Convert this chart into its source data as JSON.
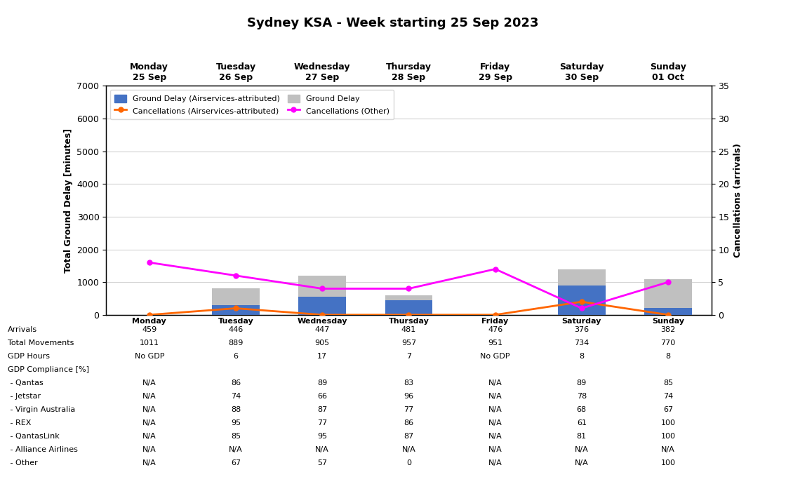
{
  "title": "Sydney KSA - Week starting 25 Sep 2023",
  "days": [
    "Monday\n25 Sep",
    "Tuesday\n26 Sep",
    "Wednesday\n27 Sep",
    "Thursday\n28 Sep",
    "Friday\n29 Sep",
    "Saturday\n30 Sep",
    "Sunday\n01 Oct"
  ],
  "days_short": [
    "Monday",
    "Tuesday",
    "Wednesday",
    "Thursday",
    "Friday",
    "Saturday",
    "Sunday"
  ],
  "ground_delay_attributed": [
    0,
    300,
    550,
    450,
    0,
    900,
    200
  ],
  "ground_delay_total": [
    0,
    800,
    1200,
    600,
    0,
    1400,
    1100
  ],
  "cancellations_attributed": [
    0,
    1,
    0,
    0,
    0,
    2,
    0
  ],
  "cancellations_other": [
    8,
    6,
    4,
    4,
    7,
    1,
    5
  ],
  "bar_color_attributed": "#4472C4",
  "bar_color_total": "#C0C0C0",
  "line_color_attributed": "#FF6600",
  "line_color_other": "#FF00FF",
  "ylabel_left": "Total Ground Delay [minutes]",
  "ylabel_right": "Cancellations (arrivals)",
  "ylim_left": [
    0,
    7000
  ],
  "ylim_right": [
    0,
    35
  ],
  "yticks_left": [
    0,
    1000,
    2000,
    3000,
    4000,
    5000,
    6000,
    7000
  ],
  "yticks_right": [
    0,
    5,
    10,
    15,
    20,
    25,
    30,
    35
  ],
  "legend_labels": [
    "Ground Delay (Airservices-attributed)",
    "Ground Delay",
    "Cancellations (Airservices-attributed)",
    "Cancellations (Other)"
  ],
  "table_rows": [
    "Arrivals",
    "Total Movements",
    "GDP Hours",
    "GDP Compliance [%]",
    " - Qantas",
    " - Jetstar",
    " - Virgin Australia",
    " - REX",
    " - QantasLink",
    " - Alliance Airlines",
    " - Other"
  ],
  "table_data": [
    [
      "459",
      "446",
      "447",
      "481",
      "476",
      "376",
      "382"
    ],
    [
      "1011",
      "889",
      "905",
      "957",
      "951",
      "734",
      "770"
    ],
    [
      "No GDP",
      "6",
      "17",
      "7",
      "No GDP",
      "8",
      "8"
    ],
    [
      "",
      "",
      "",
      "",
      "",
      "",
      ""
    ],
    [
      "N/A",
      "86",
      "89",
      "83",
      "N/A",
      "89",
      "85"
    ],
    [
      "N/A",
      "74",
      "66",
      "96",
      "N/A",
      "78",
      "74"
    ],
    [
      "N/A",
      "88",
      "87",
      "77",
      "N/A",
      "68",
      "67"
    ],
    [
      "N/A",
      "95",
      "77",
      "86",
      "N/A",
      "61",
      "100"
    ],
    [
      "N/A",
      "85",
      "95",
      "87",
      "N/A",
      "81",
      "100"
    ],
    [
      "N/A",
      "N/A",
      "N/A",
      "N/A",
      "N/A",
      "N/A",
      "N/A"
    ],
    [
      "N/A",
      "67",
      "57",
      "0",
      "N/A",
      "N/A",
      "100"
    ]
  ],
  "figsize": [
    11.2,
    6.8
  ],
  "dpi": 100,
  "title_fontsize": 13,
  "axis_label_fontsize": 9,
  "tick_fontsize": 9,
  "legend_fontsize": 8,
  "table_fontsize": 8,
  "table_header_fontsize": 8
}
